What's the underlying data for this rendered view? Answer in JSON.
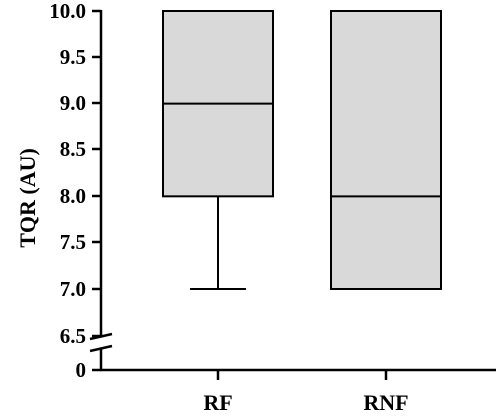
{
  "chart_data": {
    "type": "box",
    "categories": [
      "RF",
      "RNF"
    ],
    "boxes": [
      {
        "category": "RF",
        "min": 7.0,
        "q1": 8.0,
        "median": 9.0,
        "q3": 10.0,
        "max": 10.0
      },
      {
        "category": "RNF",
        "min": 7.0,
        "q1": 7.0,
        "median": 8.0,
        "q3": 10.0,
        "max": 10.0
      }
    ],
    "ylabel": "TQR (AU)",
    "yticks": [
      "10.0",
      "9.5",
      "9.0",
      "8.5",
      "8.0",
      "7.5",
      "7.0",
      "6.5",
      "0"
    ],
    "ylim": [
      6.5,
      10.0
    ],
    "axis_break": true,
    "grid": false,
    "colors": {
      "box_fill": "#d9d9d9",
      "stroke": "#000000"
    }
  }
}
